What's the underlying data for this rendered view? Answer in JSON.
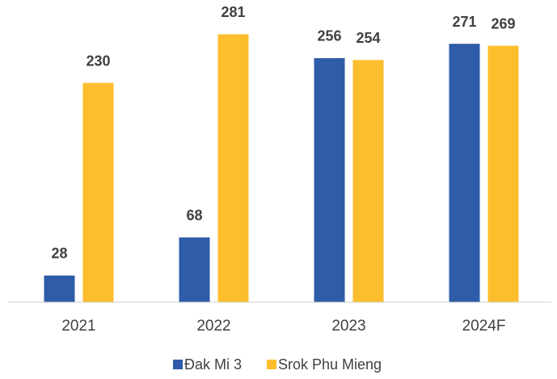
{
  "chart_data": {
    "type": "bar",
    "categories": [
      "2021",
      "2022",
      "2023",
      "2024F"
    ],
    "series": [
      {
        "name": "Đak Mi 3",
        "color": "#2e5ca8",
        "values": [
          28,
          68,
          256,
          271
        ]
      },
      {
        "name": "Srok Phu Mieng",
        "color": "#fdbe2e",
        "values": [
          230,
          281,
          254,
          269
        ]
      }
    ],
    "ylim": [
      0,
      300
    ],
    "legend": "bottom"
  }
}
